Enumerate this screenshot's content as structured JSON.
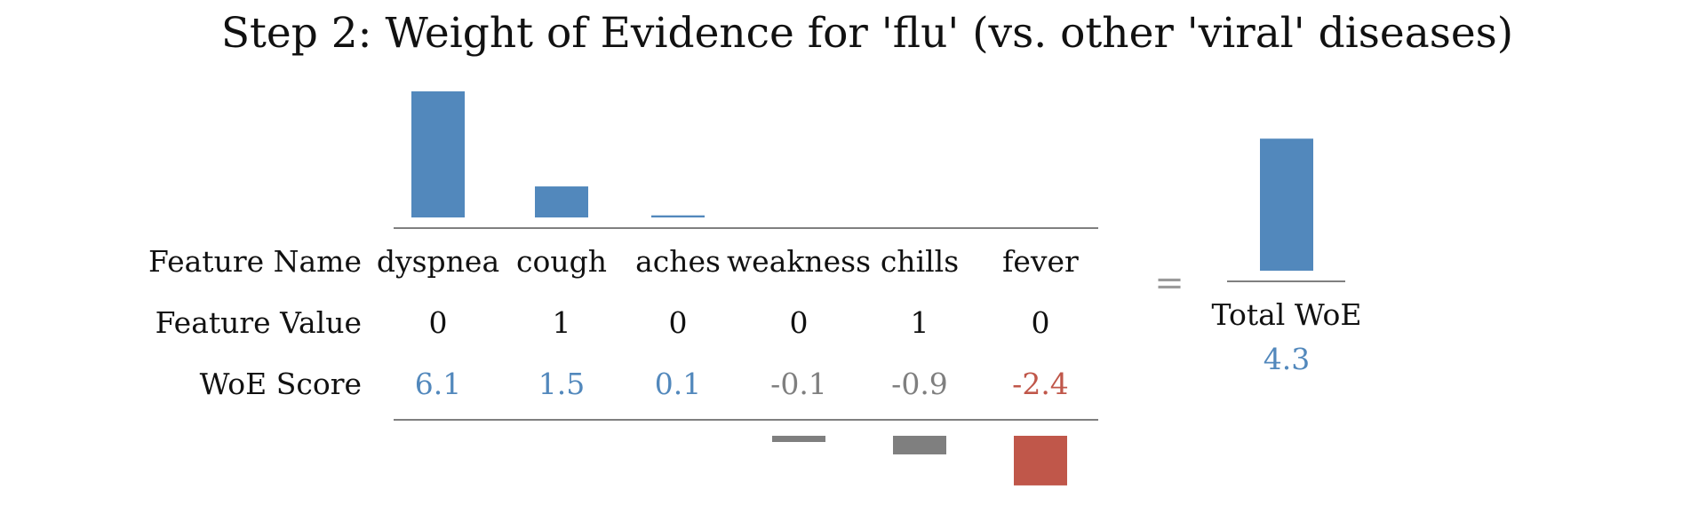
{
  "chart_data": {
    "type": "bar",
    "title": "Step 2: Weight of Evidence for 'flu' (vs. other 'viral' diseases)",
    "row_labels": [
      "Feature Name",
      "Feature Value",
      "WoE Score"
    ],
    "features": [
      {
        "name": "dyspnea",
        "value": "0",
        "woe": 6.1,
        "woe_label": "6.1"
      },
      {
        "name": "cough",
        "value": "1",
        "woe": 1.5,
        "woe_label": "1.5"
      },
      {
        "name": "aches",
        "value": "0",
        "woe": 0.1,
        "woe_label": "0.1"
      },
      {
        "name": "weakness",
        "value": "0",
        "woe": -0.1,
        "woe_label": "-0.1"
      },
      {
        "name": "chills",
        "value": "1",
        "woe": -0.9,
        "woe_label": "-0.9"
      },
      {
        "name": "fever",
        "value": "0",
        "woe": -2.4,
        "woe_label": "-2.4"
      }
    ],
    "equals_sign": "=",
    "total": {
      "label": "Total WoE",
      "value": 4.3,
      "value_label": "4.3"
    },
    "colors": {
      "positive": "#5288bc",
      "weak_negative": "#7f7f7f",
      "strong_negative": "#c0574a",
      "text": "#111111",
      "rule": "#555555"
    }
  }
}
